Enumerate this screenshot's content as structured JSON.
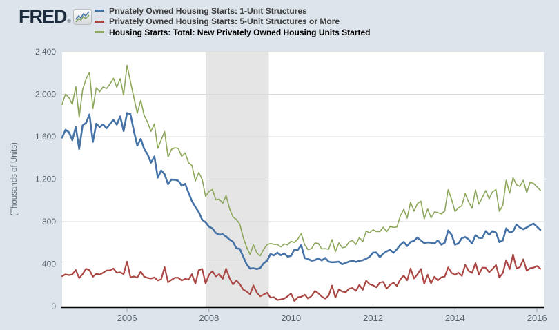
{
  "logo": {
    "text": "FRED",
    "registered": "®"
  },
  "legend": [
    {
      "label": "Privately Owned Housing Starts: 1-Unit Structures",
      "color": "#4572a7",
      "bold": false
    },
    {
      "label": "Privately Owned Housing Starts: 5-Unit Structures or More",
      "color": "#aa4643",
      "bold": false
    },
    {
      "label": "Housing Starts: Total: New Privately Owned Housing Units Started",
      "color": "#8ca65a",
      "bold": true
    }
  ],
  "chart_data": {
    "type": "line",
    "title": "",
    "xlabel": "",
    "ylabel": "(Thousands of Units)",
    "ylim": [
      0,
      2400
    ],
    "xlim_year_frac": [
      2004.4167,
      2016.1667
    ],
    "grid": true,
    "legend_position": "top",
    "x_start": {
      "year": 2004,
      "month": 6
    },
    "frequency": "monthly",
    "yticks": [
      {
        "value": 0,
        "label": "0"
      },
      {
        "value": 400,
        "label": "400"
      },
      {
        "value": 800,
        "label": "800"
      },
      {
        "value": 1200,
        "label": "1,200"
      },
      {
        "value": 1600,
        "label": "1,600"
      },
      {
        "value": 2000,
        "label": "2,000"
      },
      {
        "value": 2400,
        "label": "2,400"
      }
    ],
    "xticks": [
      {
        "value": 2006,
        "label": "2006"
      },
      {
        "value": 2008,
        "label": "2008"
      },
      {
        "value": 2010,
        "label": "2010"
      },
      {
        "value": 2012,
        "label": "2012"
      },
      {
        "value": 2014,
        "label": "2014"
      },
      {
        "value": 2016,
        "label": "2016"
      }
    ],
    "recession_band": {
      "start_year_frac": 2007.9167,
      "end_year_frac": 2009.4583,
      "color": "#e5e5e5"
    },
    "series": [
      {
        "name": "Privately Owned Housing Starts: 1-Unit Structures",
        "color": "#4572a7",
        "stroke_width": 2.6,
        "values": [
          1591,
          1665,
          1642,
          1567,
          1692,
          1485,
          1706,
          1730,
          1810,
          1552,
          1722,
          1691,
          1716,
          1680,
          1720,
          1759,
          1714,
          1791,
          1654,
          1823,
          1812,
          1654,
          1516,
          1580,
          1487,
          1434,
          1355,
          1414,
          1214,
          1281,
          1246,
          1152,
          1196,
          1194,
          1186,
          1138,
          1156,
          1072,
          994,
          938,
          889,
          817,
          794,
          752,
          736,
          692,
          677,
          681,
          660,
          630,
          610,
          549,
          543,
          470,
          398,
          357,
          361,
          353,
          363,
          408,
          432,
          495,
          482,
          507,
          483,
          500,
          470,
          477,
          537,
          534,
          579,
          457,
          448,
          432,
          437,
          454,
          434,
          458,
          423,
          417,
          419,
          423,
          398,
          412,
          423,
          432,
          421,
          430,
          436,
          450,
          468,
          508,
          509,
          463,
          499,
          520,
          534,
          506,
          540,
          582,
          608,
          570,
          608,
          618,
          650,
          623,
          597,
          604,
          601,
          594,
          623,
          582,
          601,
          717,
          677,
          583,
          594,
          644,
          655,
          632,
          594,
          672,
          647,
          646,
          711,
          677,
          711,
          695,
          607,
          623,
          736,
          699,
          708,
          772,
          745,
          728,
          745,
          765,
          781,
          752,
          722
        ]
      },
      {
        "name": "Privately Owned Housing Starts: 5-Unit Structures or More",
        "color": "#aa4643",
        "stroke_width": 2.2,
        "values": [
          286,
          303,
          296,
          302,
          345,
          268,
          305,
          356,
          343,
          280,
          309,
          301,
          318,
          339,
          341,
          358,
          318,
          322,
          305,
          423,
          275,
          283,
          272,
          329,
          282,
          270,
          264,
          274,
          246,
          257,
          371,
          228,
          251,
          271,
          271,
          245,
          260,
          253,
          305,
          216,
          343,
          354,
          217,
          300,
          333,
          284,
          305,
          261,
          356,
          267,
          208,
          245,
          212,
          160,
          142,
          115,
          199,
          130,
          97,
          112,
          131,
          83,
          88,
          62,
          67,
          74,
          96,
          122,
          53,
          87,
          92,
          111,
          75,
          99,
          147,
          125,
          94,
          74,
          102,
          197,
          84,
          161,
          141,
          135,
          168,
          175,
          148,
          204,
          158,
          244,
          211,
          200,
          181,
          226,
          232,
          169,
          204,
          224,
          193,
          256,
          292,
          247,
          358,
          264,
          302,
          354,
          214,
          299,
          218,
          281,
          246,
          275,
          282,
          368,
          317,
          298,
          319,
          289,
          392,
          336,
          317,
          409,
          301,
          366,
          365,
          322,
          354,
          390,
          274,
          315,
          437,
          352,
          489,
          359,
          371,
          445,
          337,
          361,
          366,
          381,
          356
        ]
      },
      {
        "name": "Housing Starts: Total: New Privately Owned Housing Units Started",
        "color": "#8ca65a",
        "stroke_width": 1.6,
        "values": [
          1905,
          2002,
          1968,
          1905,
          2072,
          1782,
          2042,
          2144,
          2207,
          1864,
          2061,
          2025,
          2068,
          2054,
          2095,
          2151,
          2065,
          2147,
          1994,
          2273,
          2119,
          1969,
          1821,
          1942,
          1802,
          1737,
          1650,
          1720,
          1491,
          1570,
          1649,
          1409,
          1480,
          1495,
          1490,
          1415,
          1448,
          1354,
          1330,
          1183,
          1264,
          1197,
          1037,
          1084,
          1103,
          1005,
          1013,
          973,
          1046,
          923,
          844,
          820,
          777,
          652,
          560,
          490,
          582,
          505,
          478,
          540,
          583,
          594,
          586,
          585,
          562,
          589,
          581,
          614,
          604,
          636,
          687,
          583,
          536,
          546,
          599,
          594,
          543,
          545,
          539,
          630,
          517,
          600,
          554,
          561,
          608,
          623,
          585,
          650,
          610,
          711,
          694,
          723,
          706,
          706,
          747,
          706,
          754,
          746,
          749,
          854,
          915,
          833,
          983,
          898,
          969,
          994,
          826,
          919,
          835,
          891,
          885,
          873,
          899,
          1101,
          1010,
          897,
          928,
          950,
          1063,
          984,
          927,
          1098,
          964,
          1028,
          1092,
          1015,
          1081,
          1101,
          897,
          954,
          1190,
          1067,
          1213,
          1147,
          1132,
          1189,
          1073,
          1171,
          1160,
          1128,
          1096
        ]
      }
    ]
  }
}
